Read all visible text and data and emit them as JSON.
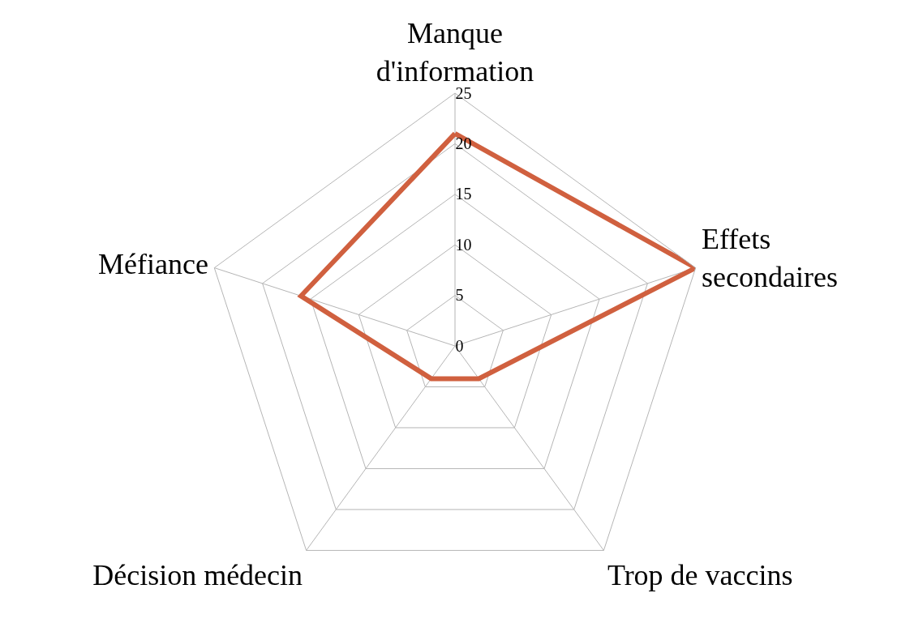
{
  "chart_data": {
    "type": "radar",
    "categories": [
      "Manque d'information",
      "Effets secondaires",
      "Trop de vaccins",
      "Décision médecin",
      "Méfiance"
    ],
    "series": [
      {
        "color": "#d0603f",
        "values": [
          21,
          25,
          4,
          4,
          16
        ]
      }
    ],
    "ylim": [
      0,
      25
    ],
    "yticks": [
      0,
      5,
      10,
      15,
      20,
      25
    ],
    "grid": true,
    "marker": "none"
  }
}
